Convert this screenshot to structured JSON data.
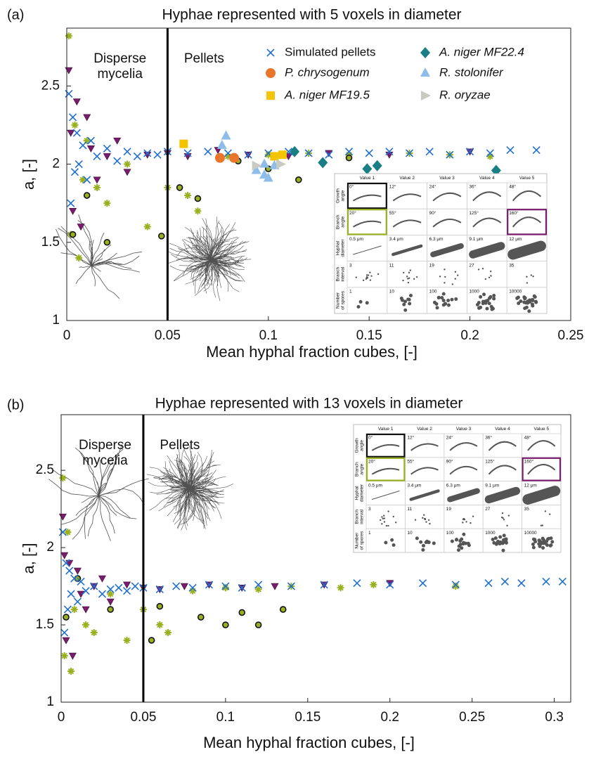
{
  "chart_data": [
    {
      "type": "scatter",
      "panel_label": "(a)",
      "title": "Hyphae represented with 5 voxels in diameter",
      "x_label": "Mean hyphal fraction cubes, [-]",
      "y_label": "a, [-]",
      "xlim": [
        0,
        0.25
      ],
      "ylim": [
        1,
        2.87
      ],
      "xticks": [
        0,
        0.05,
        0.1,
        0.15,
        0.2,
        0.25
      ],
      "yticks": [
        1,
        1.5,
        2,
        2.5
      ],
      "vline": 0.05,
      "left_region_label": [
        "Disperse",
        "mycelia"
      ],
      "right_region_label": [
        "Pellets"
      ],
      "legend": true,
      "legend_position": "top-right",
      "series": [
        {
          "color": "#7a1c6e",
          "marker": "triangle-down",
          "x": [
            0.001,
            0.002,
            0.003,
            0.005,
            0.007,
            0.01,
            0.012,
            0.015,
            0.02,
            0.025,
            0.03,
            0.04,
            0.05,
            0.06,
            0.075,
            0.09,
            0.11,
            0.13,
            0.16,
            0.2
          ],
          "values": [
            2.6,
            2.2,
            1.7,
            2.4,
            1.6,
            2.3,
            2.1,
            1.9,
            2.05,
            2.15,
            1.95,
            2.06,
            2.07,
            2.05,
            2.09,
            2.06,
            2.05,
            2.07,
            2.06,
            2.08
          ]
        },
        {
          "color": "#9ab021",
          "marker": "asterisk",
          "x": [
            0.001,
            0.002,
            0.004,
            0.006,
            0.008,
            0.01,
            0.015,
            0.02,
            0.03,
            0.04,
            0.05,
            0.06,
            0.065,
            0.08,
            0.1,
            0.12,
            0.14,
            0.17,
            0.19,
            0.21
          ],
          "values": [
            2.82,
            1.55,
            2.25,
            1.4,
            1.9,
            2.15,
            1.85,
            1.75,
            2.0,
            1.6,
            1.85,
            1.8,
            1.7,
            2.05,
            2.06,
            2.07,
            2.06,
            2.07,
            2.06,
            2.05
          ]
        },
        {
          "color": "#111111",
          "marker": "ring",
          "x": [
            0.003,
            0.01,
            0.02,
            0.047,
            0.056,
            0.065,
            0.085,
            0.1,
            0.115,
            0.14
          ],
          "values": [
            1.55,
            1.8,
            1.5,
            1.54,
            1.85,
            1.78,
            2.02,
            1.97,
            1.9,
            2.04
          ]
        },
        {
          "name": "Simulated pellets",
          "color": "#1f6fd0",
          "marker": "x",
          "x": [
            0.001,
            0.002,
            0.003,
            0.004,
            0.005,
            0.006,
            0.008,
            0.01,
            0.012,
            0.015,
            0.02,
            0.025,
            0.03,
            0.035,
            0.04,
            0.045,
            0.05,
            0.06,
            0.07,
            0.08,
            0.09,
            0.1,
            0.11,
            0.12,
            0.13,
            0.14,
            0.15,
            0.16,
            0.17,
            0.18,
            0.19,
            0.2,
            0.21,
            0.22,
            0.233
          ],
          "values": [
            2.45,
            1.75,
            2.3,
            1.95,
            2.2,
            2.0,
            2.12,
            1.9,
            2.15,
            2.05,
            2.1,
            2.02,
            2.08,
            2.05,
            2.07,
            2.06,
            2.08,
            2.07,
            2.08,
            2.07,
            2.06,
            2.07,
            2.08,
            2.07,
            2.06,
            2.08,
            2.07,
            2.08,
            2.07,
            2.08,
            2.06,
            2.08,
            2.07,
            2.09,
            2.09
          ]
        },
        {
          "name": "P. chrysogenum",
          "color": "#e8762c",
          "marker": "circle",
          "x": [
            0.076,
            0.083
          ],
          "values": [
            2.04,
            2.04
          ]
        },
        {
          "name": "A. niger MF19.5",
          "color": "#f5c400",
          "marker": "square",
          "x": [
            0.058,
            0.103,
            0.107
          ],
          "values": [
            2.13,
            2.05,
            2.06
          ]
        },
        {
          "name": "A. niger MF22.4",
          "color": "#1a7f84",
          "marker": "diamond",
          "x": [
            0.113,
            0.127,
            0.149,
            0.154,
            0.213
          ],
          "values": [
            2.08,
            2.01,
            1.97,
            1.99,
            1.96
          ]
        },
        {
          "name": "R. stolonifer",
          "color": "#8dbde8",
          "marker": "triangle-up",
          "x": [
            0.079,
            0.077,
            0.094,
            0.098,
            0.1,
            0.103,
            0.098
          ],
          "values": [
            2.18,
            2.12,
            1.96,
            1.93,
            1.91,
            1.99,
            2.0
          ]
        },
        {
          "name": "R. oryzae",
          "color": "#c8cbc4",
          "marker": "triangle-right",
          "x": [
            0.094,
            0.106
          ],
          "values": [
            1.99,
            2.0
          ]
        }
      ],
      "inset": {
        "columns": [
          "Value 1",
          "Value 2",
          "Value 3",
          "Value 4",
          "Value 5"
        ],
        "rows": [
          {
            "label": [
              "Growth",
              "angle"
            ],
            "cells": [
              "0°",
              "12°",
              "24°",
              "36°",
              "48°"
            ]
          },
          {
            "label": [
              "Branch",
              "angle"
            ],
            "cells": [
              "20°",
              "55°",
              "90°",
              "125°",
              "160°"
            ]
          },
          {
            "label": [
              "Hyphal",
              "diameter"
            ],
            "cells": [
              "0.5 μm",
              "3.4 μm",
              "6.3 μm",
              "9.1 μm",
              "12 μm"
            ]
          },
          {
            "label": [
              "Branch",
              "interval"
            ],
            "cells": [
              "3",
              "11",
              "19",
              "27",
              "35"
            ]
          },
          {
            "label": [
              "Number",
              "of spores"
            ],
            "cells": [
              "1",
              "10",
              "100",
              "1000",
              "10000"
            ]
          }
        ]
      }
    },
    {
      "type": "scatter",
      "panel_label": "(b)",
      "title": "Hyphae represented with 13 voxels in diameter",
      "x_label": "Mean hyphal fraction cubes, [-]",
      "y_label": "a, [-]",
      "xlim": [
        0,
        0.31
      ],
      "ylim": [
        1,
        2.86
      ],
      "xticks": [
        0,
        0.05,
        0.1,
        0.15,
        0.2,
        0.25,
        0.3
      ],
      "yticks": [
        1,
        1.5,
        2,
        2.5
      ],
      "vline": 0.05,
      "left_region_label": [
        "Disperse",
        "mycelia"
      ],
      "right_region_label": [
        "Pellets"
      ],
      "legend": false,
      "series": [
        {
          "color": "#7a1c6e",
          "marker": "triangle-down",
          "x": [
            0.001,
            0.002,
            0.003,
            0.005,
            0.007,
            0.01,
            0.012,
            0.015,
            0.02,
            0.025,
            0.03,
            0.04,
            0.05,
            0.06,
            0.075,
            0.09,
            0.11,
            0.13,
            0.16,
            0.2
          ],
          "values": [
            2.2,
            1.95,
            1.4,
            1.9,
            1.3,
            1.85,
            1.7,
            1.6,
            1.75,
            1.8,
            1.65,
            1.76,
            1.74,
            1.73,
            1.75,
            1.76,
            1.74,
            1.75,
            1.76,
            1.77
          ]
        },
        {
          "color": "#9ab021",
          "marker": "asterisk",
          "x": [
            0.001,
            0.002,
            0.004,
            0.006,
            0.008,
            0.01,
            0.015,
            0.02,
            0.03,
            0.04,
            0.05,
            0.06,
            0.065,
            0.08,
            0.1,
            0.12,
            0.14,
            0.17,
            0.19,
            0.24
          ],
          "values": [
            2.45,
            1.3,
            2.1,
            1.2,
            1.6,
            1.8,
            1.5,
            1.45,
            1.7,
            1.4,
            1.6,
            1.5,
            1.45,
            1.72,
            1.74,
            1.73,
            1.75,
            1.74,
            1.76,
            1.75
          ]
        },
        {
          "color": "#111111",
          "marker": "ring",
          "x": [
            0.003,
            0.01,
            0.03,
            0.055,
            0.06,
            0.085,
            0.1,
            0.11,
            0.12,
            0.135
          ],
          "values": [
            1.55,
            1.8,
            1.6,
            1.4,
            1.62,
            1.55,
            1.5,
            1.58,
            1.5,
            1.6
          ]
        },
        {
          "color": "#1f6fd0",
          "marker": "x",
          "x": [
            0.001,
            0.002,
            0.003,
            0.004,
            0.005,
            0.006,
            0.008,
            0.01,
            0.012,
            0.015,
            0.02,
            0.025,
            0.03,
            0.035,
            0.04,
            0.045,
            0.05,
            0.06,
            0.07,
            0.08,
            0.09,
            0.1,
            0.11,
            0.12,
            0.14,
            0.16,
            0.18,
            0.2,
            0.22,
            0.24,
            0.26,
            0.27,
            0.28,
            0.295,
            0.305
          ],
          "values": [
            2.1,
            1.45,
            1.9,
            1.6,
            1.85,
            1.7,
            1.8,
            1.65,
            1.78,
            1.72,
            1.75,
            1.7,
            1.73,
            1.74,
            1.72,
            1.75,
            1.74,
            1.73,
            1.75,
            1.74,
            1.76,
            1.75,
            1.74,
            1.76,
            1.75,
            1.76,
            1.77,
            1.76,
            1.77,
            1.76,
            1.77,
            1.78,
            1.77,
            1.78,
            1.78
          ]
        }
      ],
      "inset": {
        "columns": [
          "Value 1",
          "Value 2",
          "Value 3",
          "Value 4",
          "Value 5"
        ],
        "rows": [
          {
            "label": [
              "Growth",
              "angle"
            ],
            "cells": [
              "0°",
              "12°",
              "24°",
              "36°",
              "48°"
            ]
          },
          {
            "label": [
              "Branch",
              "angle"
            ],
            "cells": [
              "20°",
              "55°",
              "90°",
              "125°",
              "160°"
            ]
          },
          {
            "label": [
              "Hyphal",
              "diameter"
            ],
            "cells": [
              "0.5 μm",
              "3.4 μm",
              "6.3 μm",
              "9.1 μm",
              "12 μm"
            ]
          },
          {
            "label": [
              "Branch",
              "interval"
            ],
            "cells": [
              "3",
              "11",
              "19",
              "27",
              "35"
            ]
          },
          {
            "label": [
              "Number",
              "of spores"
            ],
            "cells": [
              "1",
              "10",
              "100",
              "1000",
              "10000"
            ]
          }
        ]
      }
    }
  ]
}
